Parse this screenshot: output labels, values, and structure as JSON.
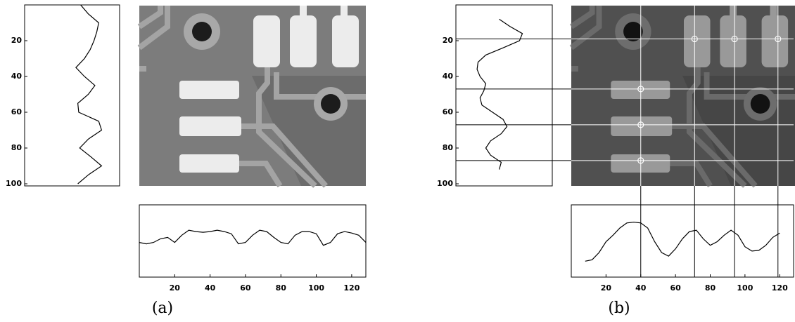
{
  "chart_data": [
    {
      "type": "line",
      "orientation": "vertical",
      "x": [
        0,
        5,
        10,
        15,
        20,
        25,
        30,
        35,
        40,
        45,
        50,
        55,
        60,
        65,
        70,
        75,
        80,
        85,
        90,
        95,
        100
      ],
      "values": [
        59,
        67,
        78,
        76,
        73,
        69,
        63,
        54,
        63,
        74,
        67,
        56,
        57,
        78,
        81,
        67,
        58,
        70,
        81,
        67,
        56
      ],
      "xlim": [
        0,
        100
      ],
      "xticks": [
        20,
        40,
        60,
        80,
        100
      ],
      "ylim": [
        0,
        100
      ],
      "color": "#000000"
    },
    {
      "type": "line",
      "orientation": "horizontal",
      "x": [
        0,
        4,
        8,
        12,
        16,
        20,
        24,
        28,
        32,
        36,
        40,
        44,
        48,
        52,
        56,
        60,
        64,
        68,
        72,
        76,
        80,
        84,
        88,
        92,
        96,
        100,
        104,
        108,
        112,
        116,
        120,
        124,
        128
      ],
      "values": [
        48,
        46,
        48,
        53,
        55,
        48,
        58,
        65,
        63,
        62,
        63,
        65,
        63,
        60,
        46,
        48,
        58,
        65,
        63,
        55,
        48,
        46,
        58,
        63,
        63,
        60,
        44,
        48,
        60,
        63,
        61,
        58,
        48
      ],
      "xlim": [
        0,
        128
      ],
      "xticks": [
        20,
        40,
        60,
        80,
        100,
        120
      ],
      "ylim": [
        0,
        100
      ],
      "color": "#000000"
    },
    {
      "type": "line",
      "orientation": "vertical",
      "x": [
        8,
        12,
        16,
        20,
        24,
        28,
        32,
        36,
        40,
        44,
        48,
        52,
        56,
        60,
        64,
        68,
        72,
        76,
        80,
        84,
        88,
        92
      ],
      "values": [
        45,
        56,
        69,
        66,
        49,
        31,
        23,
        22,
        25,
        31,
        29,
        25,
        27,
        38,
        49,
        53,
        47,
        36,
        31,
        36,
        47,
        45
      ],
      "xlim": [
        0,
        100
      ],
      "xticks": [
        20,
        40,
        60,
        80,
        100
      ],
      "ylim": [
        0,
        100
      ],
      "color": "#000000"
    },
    {
      "type": "line",
      "orientation": "horizontal",
      "x": [
        8,
        12,
        16,
        20,
        24,
        28,
        32,
        36,
        40,
        44,
        48,
        52,
        56,
        60,
        64,
        68,
        72,
        76,
        80,
        84,
        88,
        92,
        96,
        100,
        104,
        108,
        112,
        116,
        120
      ],
      "values": [
        22,
        24,
        34,
        49,
        58,
        68,
        75,
        76,
        75,
        68,
        49,
        34,
        29,
        39,
        53,
        63,
        65,
        53,
        44,
        49,
        58,
        65,
        58,
        42,
        36,
        37,
        44,
        55,
        61
      ],
      "xlim": [
        0,
        128
      ],
      "xticks": [
        20,
        40,
        60,
        80,
        100,
        120
      ],
      "ylim": [
        0,
        100
      ],
      "color": "#000000"
    }
  ],
  "guides": {
    "rows": [
      19,
      47,
      67,
      87
    ],
    "cols": [
      40,
      71,
      94,
      119
    ],
    "points_x": [
      71,
      94,
      119,
      40,
      40,
      40
    ],
    "points_y": [
      19,
      19,
      19,
      47,
      67,
      87
    ]
  },
  "captions": [
    "(a)",
    "(b)"
  ]
}
